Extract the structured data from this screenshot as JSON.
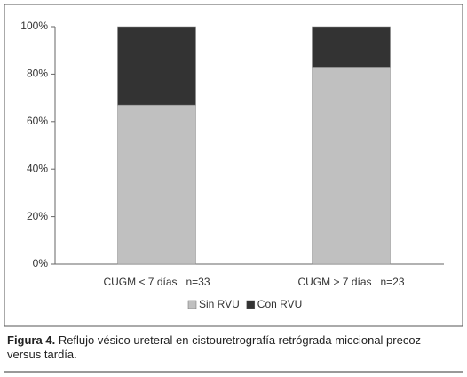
{
  "chart_data": {
    "type": "bar",
    "stacked": true,
    "categories": [
      "CUGM < 7 días   n=33",
      "CUGM > 7 días   n=23"
    ],
    "series": [
      {
        "name": "Sin RVU",
        "color": "#c0c0c0",
        "values": [
          67,
          83
        ]
      },
      {
        "name": "Con RVU",
        "color": "#333333",
        "values": [
          33,
          17
        ]
      }
    ],
    "ylim": [
      0,
      100
    ],
    "yticks": [
      {
        "value": 0,
        "label": "0%"
      },
      {
        "value": 20,
        "label": "20%"
      },
      {
        "value": 40,
        "label": "40%"
      },
      {
        "value": 60,
        "label": "60%"
      },
      {
        "value": 80,
        "label": "80%"
      },
      {
        "value": 100,
        "label": "100%"
      }
    ],
    "grid": false,
    "legend": "bottom",
    "figure_label": "Figura 4.",
    "caption": "Reflujo vésico ureteral en cistouretrografía retrógrada miccional precoz versus tardía."
  }
}
